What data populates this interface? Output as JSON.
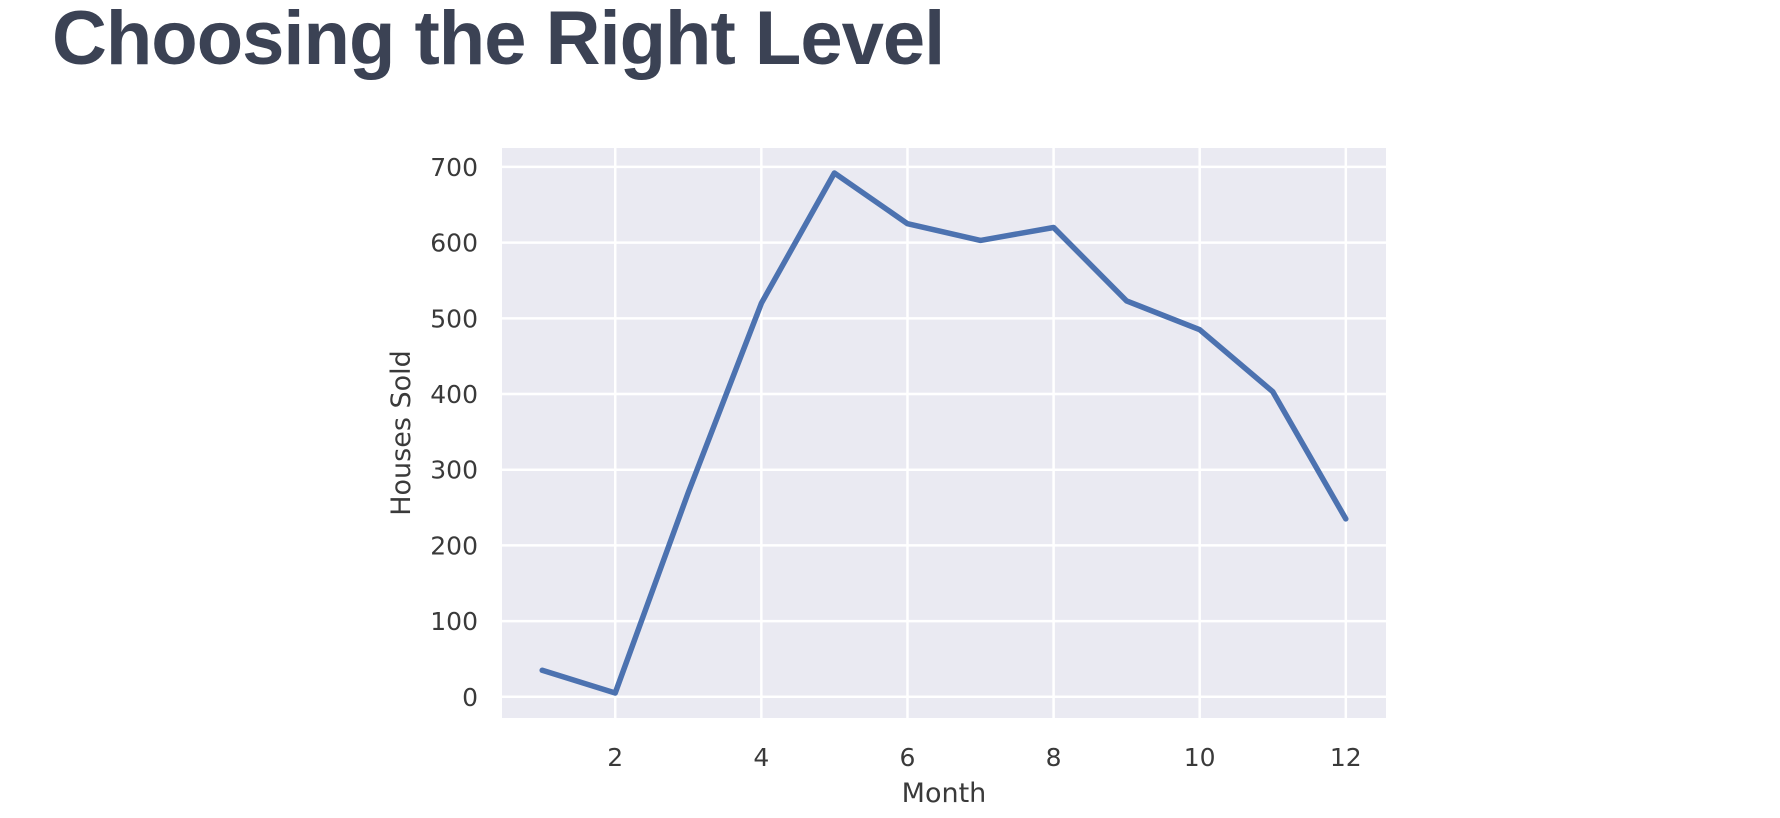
{
  "slide": {
    "title": "Choosing the Right Level"
  },
  "chart_data": {
    "type": "line",
    "title": "",
    "xlabel": "Month",
    "ylabel": "Houses Sold",
    "x": [
      1,
      2,
      3,
      4,
      5,
      6,
      7,
      8,
      9,
      10,
      11,
      12
    ],
    "series": [
      {
        "values": [
          35,
          5,
          270,
          520,
          692,
          625,
          603,
          620,
          523,
          485,
          403,
          235
        ]
      }
    ],
    "xticks": [
      2,
      4,
      6,
      8,
      10,
      12
    ],
    "yticks": [
      0,
      100,
      200,
      300,
      400,
      500,
      600,
      700
    ],
    "xlim": [
      0.45,
      12.55
    ],
    "ylim": [
      -28,
      725
    ],
    "grid": true,
    "legend": "none",
    "colors": {
      "line": "#4c72b0",
      "plot_background": "#eaeaf2",
      "grid": "#ffffff"
    }
  }
}
